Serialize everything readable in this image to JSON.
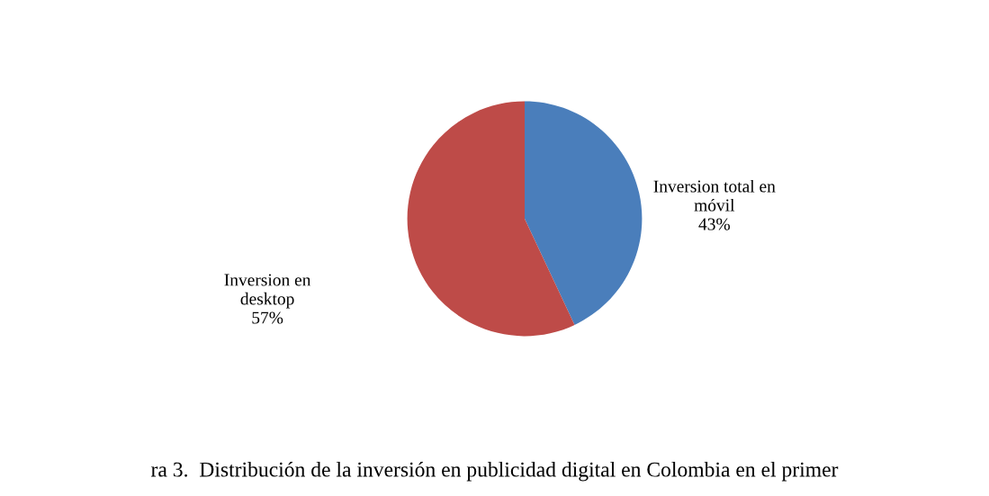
{
  "chart_data": {
    "type": "pie",
    "categories": [
      "Inversion total en\nmóvil",
      "Inversion en\ndesktop"
    ],
    "values": [
      43,
      57
    ],
    "colors": [
      "#4a7ebb",
      "#be4b48"
    ],
    "value_labels": [
      "43%",
      "57%"
    ],
    "legend": false,
    "annotations": [
      "ra 3.  Distribución de la inversión en publicidad digital en Colombia en el primer"
    ]
  }
}
